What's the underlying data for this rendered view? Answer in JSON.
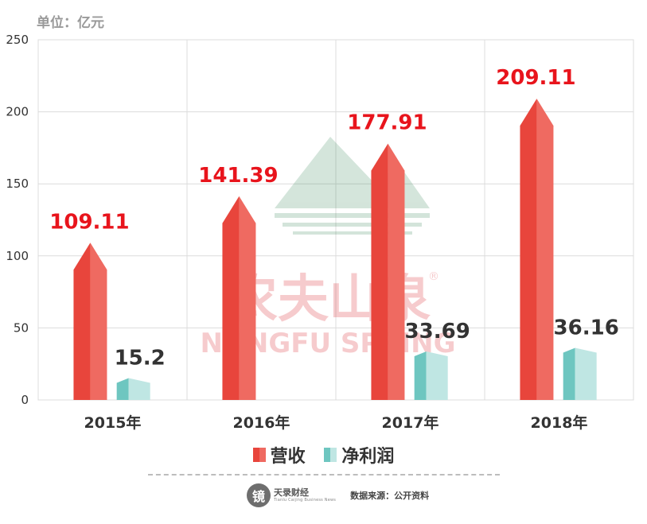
{
  "unit_label": "单位：亿元",
  "legend": {
    "revenue": "营收",
    "profit": "净利润"
  },
  "watermark": {
    "cn": "农夫山泉",
    "en": "NONGFU SPRING",
    "mark": "®"
  },
  "footer": {
    "logo_char": "镜",
    "logo_name": "天录财经",
    "logo_sub": "Tianlu Caijing Business News",
    "source": "数据来源：公开资料"
  },
  "colors": {
    "revenue": "#e8453c",
    "revenue_light": "#ef6a61",
    "profit": "#6ec6c0",
    "profit_light": "#bfe6e3",
    "label_red": "#e8141c",
    "label_dark": "#333333"
  },
  "chart_data": {
    "type": "bar",
    "categories": [
      "2015年",
      "2016年",
      "2017年",
      "2018年"
    ],
    "series": [
      {
        "name": "营收",
        "values": [
          109.11,
          141.39,
          177.91,
          209.11
        ],
        "labels": [
          "109.11",
          "141.39",
          "177.91",
          "209.11"
        ]
      },
      {
        "name": "净利润",
        "values": [
          15.2,
          null,
          33.69,
          36.16
        ],
        "labels": [
          "15.2",
          "",
          "33.69",
          "36.16"
        ]
      }
    ],
    "yticks": [
      "0",
      "50",
      "100",
      "150",
      "200",
      "250"
    ],
    "ylim": [
      0,
      250
    ],
    "grid": true,
    "legend_position": "bottom"
  }
}
